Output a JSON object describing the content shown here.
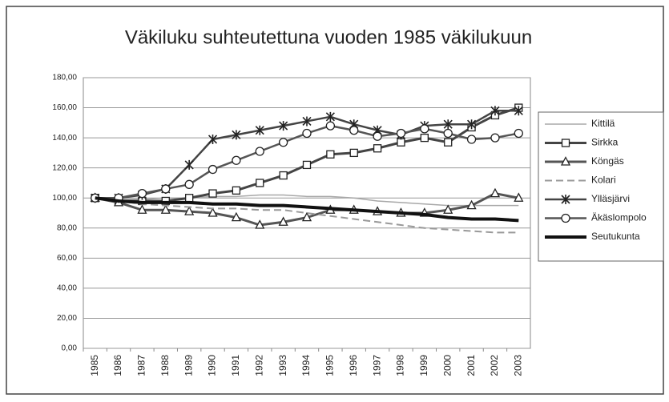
{
  "chart_data": {
    "type": "line",
    "title": "Väkiluku suhteutettuna vuoden 1985 väkilukuun",
    "categories": [
      "1985",
      "1986",
      "1987",
      "1988",
      "1989",
      "1990",
      "1991",
      "1992",
      "1993",
      "1994",
      "1995",
      "1996",
      "1997",
      "1998",
      "1999",
      "2000",
      "2001",
      "2002",
      "2003"
    ],
    "series": [
      {
        "name": "Kittilä",
        "color": "#a8a8a8",
        "width": 1.5,
        "marker": "none",
        "dash": "none",
        "values": [
          100,
          99,
          99,
          100,
          100,
          101,
          101,
          102,
          102,
          101,
          101,
          100,
          98,
          97,
          96,
          95,
          95,
          95,
          95
        ]
      },
      {
        "name": "Sirkka",
        "color": "#444444",
        "width": 3,
        "marker": "square",
        "dash": "none",
        "values": [
          100,
          98,
          98,
          98,
          100,
          103,
          105,
          110,
          115,
          122,
          129,
          130,
          133,
          137,
          140,
          137,
          147,
          155,
          160
        ]
      },
      {
        "name": "Köngäs",
        "color": "#555555",
        "width": 3,
        "marker": "triangle",
        "dash": "none",
        "values": [
          100,
          97,
          92,
          92,
          91,
          90,
          87,
          82,
          84,
          87,
          92,
          92,
          91,
          90,
          90,
          92,
          95,
          103,
          100
        ]
      },
      {
        "name": "Kolari",
        "color": "#999999",
        "width": 2,
        "marker": "none",
        "dash": "dashed",
        "values": [
          100,
          98,
          96,
          95,
          94,
          93,
          93,
          92,
          92,
          90,
          88,
          86,
          84,
          82,
          80,
          79,
          78,
          77,
          77
        ]
      },
      {
        "name": "Ylläsjärvi",
        "color": "#444444",
        "width": 2.5,
        "marker": "asterisk",
        "dash": "none",
        "values": [
          100,
          100,
          102,
          106,
          122,
          139,
          142,
          145,
          148,
          151,
          154,
          149,
          145,
          142,
          148,
          149,
          149,
          158,
          158
        ]
      },
      {
        "name": "Äkäslompolo",
        "color": "#555555",
        "width": 2.5,
        "marker": "circle",
        "dash": "none",
        "values": [
          100,
          100,
          103,
          106,
          109,
          119,
          125,
          131,
          137,
          143,
          148,
          145,
          141,
          143,
          146,
          143,
          139,
          140,
          143
        ]
      },
      {
        "name": "Seutukunta",
        "color": "#111111",
        "width": 4,
        "marker": "none",
        "dash": "none",
        "values": [
          100,
          98,
          97,
          97,
          97,
          96,
          96,
          95,
          95,
          94,
          93,
          92,
          91,
          90,
          89,
          87,
          86,
          86,
          85
        ]
      }
    ],
    "ylim": [
      0,
      180
    ],
    "yticks": [
      {
        "value": 0,
        "label": "0,00"
      },
      {
        "value": 20,
        "label": "20,00"
      },
      {
        "value": 40,
        "label": "40,00"
      },
      {
        "value": 60,
        "label": "60,00"
      },
      {
        "value": 80,
        "label": "80,00"
      },
      {
        "value": 100,
        "label": "100,00"
      },
      {
        "value": 120,
        "label": "120,00"
      },
      {
        "value": 140,
        "label": "140,00"
      },
      {
        "value": 160,
        "label": "160,00"
      },
      {
        "value": 180,
        "label": "180,00"
      }
    ],
    "grid": true,
    "legend": "right"
  }
}
